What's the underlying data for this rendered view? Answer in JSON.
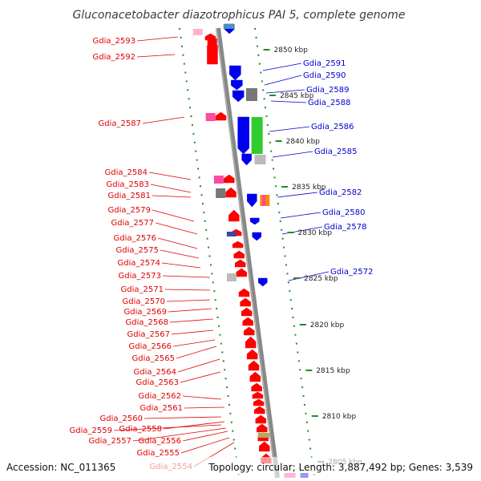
{
  "title": "Gluconacetobacter diazotrophicus PAI 5, complete genome",
  "accession": "Accession: NC_011365",
  "topology_info": "Topology: circular; Length: 3,887,492 bp; Genes: 3,539",
  "colors": {
    "reverse": "#ff0000",
    "forward": "#0000ee",
    "pink": "#ff4aa0",
    "gray": "#777777",
    "green": "#2ecc2e",
    "backbone": "#888888",
    "ruler": "#228b22",
    "olive": "#b4a85a",
    "navy": "#44449a"
  },
  "ticks": [
    "2850 kbp",
    "2845 kbp",
    "2840 kbp",
    "2835 kbp",
    "2830 kbp",
    "2825 kbp",
    "2820 kbp",
    "2815 kbp",
    "2810 kbp",
    "2805 kbp"
  ],
  "left_genes": [
    "Gdia_2593",
    "Gdia_2592",
    "Gdia_2587",
    "Gdia_2584",
    "Gdia_2583",
    "Gdia_2581",
    "Gdia_2579",
    "Gdia_2577",
    "Gdia_2576",
    "Gdia_2575",
    "Gdia_2574",
    "Gdia_2573",
    "Gdia_2571",
    "Gdia_2570",
    "Gdia_2569",
    "Gdia_2568",
    "Gdia_2567",
    "Gdia_2566",
    "Gdia_2565",
    "Gdia_2564",
    "Gdia_2563",
    "Gdia_2562",
    "Gdia_2561",
    "Gdia_2560",
    "Gdia_2558",
    "Gdia_2559",
    "Gdia_2556",
    "Gdia_2557",
    "Gdia_2555",
    "Gdia_2554"
  ],
  "right_genes": [
    "Gdia_2591",
    "Gdia_2590",
    "Gdia_2589",
    "Gdia_2588",
    "Gdia_2586",
    "Gdia_2585",
    "Gdia_2582",
    "Gdia_2580",
    "Gdia_2578",
    "Gdia_2572"
  ]
}
